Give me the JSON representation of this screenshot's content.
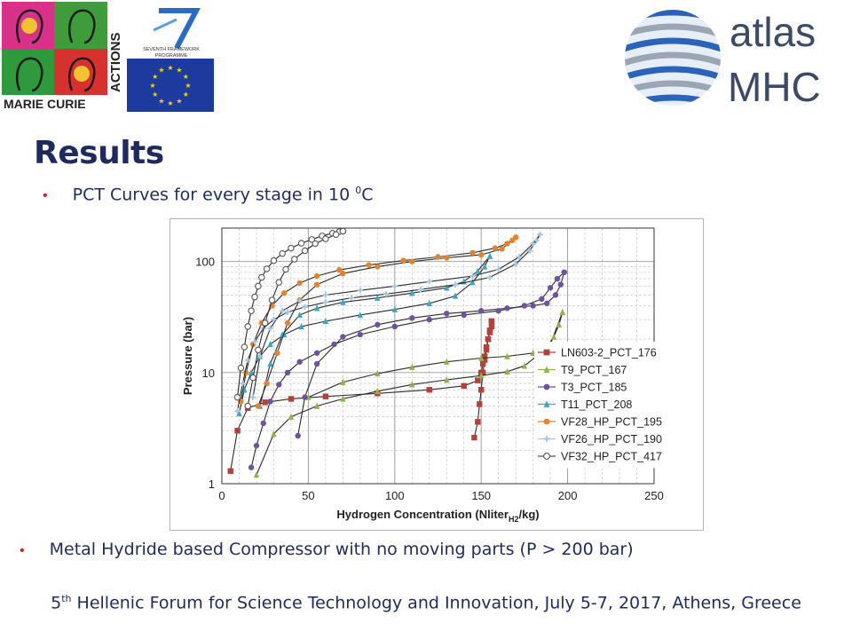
{
  "header": {
    "marie_curie_text": "MARIE CURIE",
    "actions_text": "ACTIONS",
    "fp7_text_1": "SEVENTH FRAMEWORK",
    "fp7_text_2": "PROGRAMME",
    "atlas_text": "atlas",
    "mhc_text": "MHC"
  },
  "slide": {
    "title": "Results",
    "bullet1_text": "PCT Curves for every stage in 10 ",
    "bullet1_sup": "0",
    "bullet1_unit": "C",
    "bullet2_text": "Metal Hydride based Compressor with no moving parts (P > 200 bar)",
    "footer_num": "5",
    "footer_sup": "th",
    "footer_rest": " Hellenic Forum for Science Technology and Innovation, July 5-7, 2017, Athens, Greece"
  },
  "colors": {
    "title": "#1f2a5f",
    "bullet": "#c0282d"
  },
  "chart_data": {
    "type": "scatter",
    "xlabel": "Hydrogen Concentration (Nliter",
    "xlabel_sub": "H2",
    "xlabel_end": "/kg)",
    "ylabel": "Pressure (bar)",
    "x_ticks": [
      0,
      50,
      100,
      150,
      200,
      250
    ],
    "y_ticks": [
      1,
      10,
      100
    ],
    "xlim": [
      0,
      250
    ],
    "ylim": [
      1,
      200
    ],
    "y_scale": "log",
    "grid": true,
    "legend_position": "bottom-right",
    "series": [
      {
        "name": "LN603-2_PCT_176",
        "color": "#b5403a",
        "marker": "square",
        "x": [
          5,
          9,
          15,
          25,
          40,
          60,
          90,
          120,
          140,
          148,
          150,
          151,
          152,
          153,
          154,
          155,
          156,
          156
        ],
        "y": [
          1.3,
          3.0,
          4.8,
          5.4,
          5.8,
          6.1,
          6.5,
          7.0,
          7.6,
          8.5,
          10,
          12,
          14,
          17,
          20,
          23,
          26,
          29
        ],
        "desorption_x": [
          156,
          155,
          154,
          153,
          152,
          151,
          150,
          149,
          148,
          146
        ],
        "desorption_y": [
          29,
          24,
          20,
          16,
          13,
          10,
          7,
          5.2,
          3.6,
          2.6
        ]
      },
      {
        "name": "T9_PCT_167",
        "color": "#8fb347",
        "marker": "triangle",
        "x": [
          20,
          30,
          40,
          55,
          70,
          90,
          110,
          130,
          150,
          165,
          175,
          182,
          188,
          192,
          195,
          197
        ],
        "y": [
          1.2,
          2.8,
          4.0,
          5.0,
          5.8,
          6.8,
          7.8,
          8.6,
          9.4,
          10.2,
          11.5,
          14,
          17,
          21,
          27,
          35
        ],
        "desorption_x": [
          197,
          190,
          180,
          165,
          150,
          130,
          110,
          90,
          70,
          50
        ],
        "desorption_y": [
          35,
          18,
          15,
          14,
          13.5,
          12.5,
          11.2,
          9.8,
          8.2,
          6.0
        ]
      },
      {
        "name": "T3_PCT_185",
        "color": "#6e52a0",
        "marker": "circle",
        "x": [
          17,
          20,
          24,
          28,
          33,
          38,
          45,
          55,
          65,
          80,
          100,
          120,
          140,
          160,
          175,
          185,
          190,
          194,
          198
        ],
        "y": [
          1.4,
          2.2,
          3.5,
          5.5,
          7.8,
          10,
          12.5,
          15,
          18,
          22,
          26,
          30,
          33,
          36,
          40,
          46,
          58,
          70,
          80
        ],
        "desorption_x": [
          198,
          196,
          193,
          188,
          180,
          165,
          150,
          130,
          110,
          90,
          70,
          55,
          48,
          44
        ],
        "desorption_y": [
          80,
          62,
          50,
          42,
          40,
          38,
          36,
          34,
          31,
          27,
          21,
          12,
          6,
          2.7
        ]
      },
      {
        "name": "T11_PCT_208",
        "color": "#3ba6c4",
        "marker": "triangle",
        "x": [
          10,
          13,
          17,
          22,
          28,
          36,
          46,
          60,
          80,
          100,
          120,
          135,
          145,
          152,
          155
        ],
        "y": [
          4.3,
          7.0,
          10,
          14,
          18,
          22,
          26,
          29,
          33,
          37,
          42,
          49,
          65,
          90,
          112
        ],
        "desorption_x": [
          155,
          148,
          140,
          130,
          110,
          90,
          70,
          55,
          45,
          35,
          28,
          22
        ],
        "desorption_y": [
          112,
          82,
          66,
          58,
          52,
          47,
          43,
          38,
          33,
          22,
          12,
          5.0
        ]
      },
      {
        "name": "VF28_HP_PCT_195",
        "color": "#e2842f",
        "marker": "circle",
        "x": [
          11,
          14,
          18,
          23,
          29,
          36,
          45,
          55,
          68,
          85,
          105,
          125,
          145,
          158,
          165,
          168,
          170
        ],
        "y": [
          5.5,
          10,
          18,
          28,
          40,
          52,
          64,
          74,
          84,
          93,
          102,
          110,
          120,
          132,
          145,
          155,
          165
        ],
        "desorption_x": [
          170,
          162,
          150,
          130,
          110,
          90,
          70,
          55,
          45,
          38,
          32,
          26,
          21
        ],
        "desorption_y": [
          165,
          130,
          115,
          108,
          100,
          90,
          78,
          62,
          45,
          28,
          15,
          8,
          5
        ]
      },
      {
        "name": "VF26_HP_PCT_190",
        "color": "#a7c6e2",
        "marker": "plus",
        "x": [
          9,
          12,
          15,
          19,
          24,
          30,
          38,
          48,
          60,
          75,
          95,
          115,
          135,
          155,
          170,
          178,
          182,
          184
        ],
        "y": [
          4.5,
          8,
          13,
          19,
          25,
          30,
          35,
          39,
          43,
          47,
          51,
          56,
          62,
          72,
          95,
          125,
          155,
          175
        ],
        "desorption_x": [
          184,
          180,
          172,
          160,
          145,
          120,
          100,
          80,
          60,
          45,
          35,
          28,
          22,
          18
        ],
        "desorption_y": [
          175,
          145,
          110,
          85,
          74,
          66,
          60,
          55,
          50,
          44,
          36,
          25,
          14,
          6
        ]
      },
      {
        "name": "VF32_HP_PCT_417",
        "color": "#555555",
        "marker": "open-circle",
        "x": [
          9,
          11,
          13,
          15,
          17,
          19,
          21,
          23,
          26,
          30,
          35,
          40,
          46,
          52,
          58,
          64,
          68,
          70
        ],
        "y": [
          6,
          11,
          17,
          26,
          36,
          48,
          60,
          72,
          86,
          102,
          118,
          132,
          146,
          158,
          170,
          180,
          186,
          188
        ],
        "desorption_x": [
          70,
          66,
          60,
          54,
          48,
          42,
          37,
          33,
          29,
          25,
          21,
          18,
          15
        ],
        "desorption_y": [
          188,
          175,
          160,
          145,
          125,
          105,
          85,
          65,
          45,
          28,
          16,
          9,
          5
        ]
      }
    ]
  }
}
